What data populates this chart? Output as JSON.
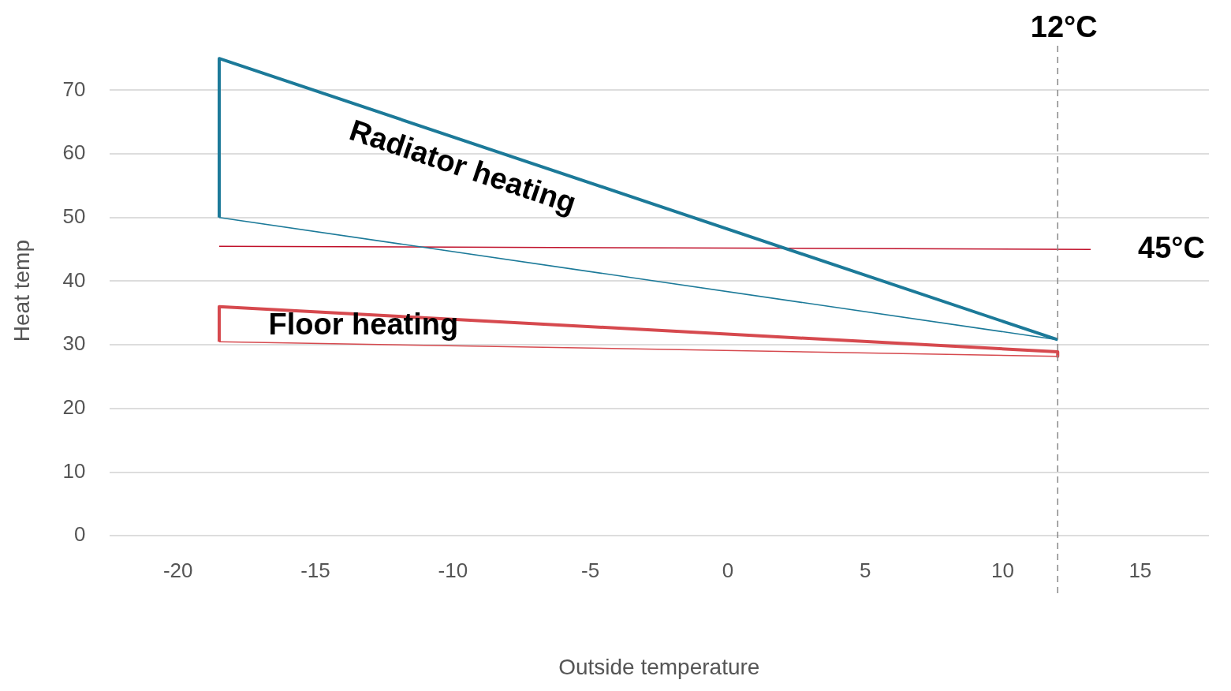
{
  "chart_data": {
    "type": "line",
    "xlabel": "Outside temperature",
    "ylabel": "Heat temp",
    "xlim": [
      -22.5,
      17.5
    ],
    "xticks": [
      -20,
      -15,
      -10,
      -5,
      0,
      5,
      10,
      15
    ],
    "ylim": [
      0,
      77
    ],
    "yticks": [
      0,
      10,
      20,
      30,
      40,
      50,
      60,
      70
    ],
    "grid": "y",
    "marker": "none",
    "line_style": "solid",
    "series": [
      {
        "name": "Radiator heating",
        "color": "#1c7a99",
        "x": [
          -18.5,
          -18.5,
          12
        ],
        "values": [
          50,
          75,
          30.8
        ]
      },
      {
        "color": "#1c7a99",
        "x": [
          -18.5,
          12
        ],
        "values": [
          50,
          30.8
        ]
      },
      {
        "name": "Floor heating",
        "color": "#d6494e",
        "x": [
          -18.5,
          -18.5,
          12,
          12
        ],
        "values": [
          30.5,
          36,
          28.9,
          28.2
        ]
      },
      {
        "color": "#d6494e",
        "x": [
          -18.5,
          12
        ],
        "values": [
          30.5,
          28.2
        ]
      },
      {
        "color": "#c0102a",
        "x": [
          -18.5,
          13.2
        ],
        "values": [
          45.5,
          45
        ]
      }
    ],
    "ref_lines": [
      {
        "axis": "x",
        "value": 12,
        "label": "12°C",
        "color": "#888888",
        "line_style": "dashed"
      }
    ],
    "annotations": [
      {
        "text": "45°C",
        "x": 13.2,
        "y": 45
      }
    ]
  }
}
